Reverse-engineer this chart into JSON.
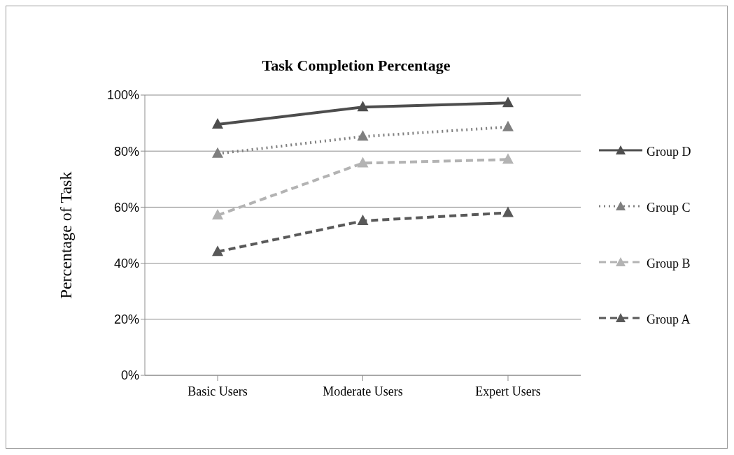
{
  "chart_data": {
    "type": "line",
    "title": "Task Completion Percentage",
    "ylabel": "Percentage of Task",
    "categories": [
      "Basic Users",
      "Moderate Users",
      "Expert Users"
    ],
    "series": [
      {
        "name": "Group A",
        "color": "#595959",
        "line_style": "dashed",
        "values": [
          44.1,
          55.1,
          58
        ]
      },
      {
        "name": "Group B",
        "color": "#b3b3b3",
        "line_style": "dashed",
        "values": [
          57.1,
          75.7,
          77
        ]
      },
      {
        "name": "Group C",
        "color": "#7f7f7f",
        "line_style": "dotted",
        "values": [
          79.1,
          85.2,
          88.6
        ]
      },
      {
        "name": "Group D",
        "color": "#4d4d4d",
        "line_style": "solid",
        "values": [
          89.5,
          95.7,
          97.2
        ]
      }
    ],
    "ylim": [
      0,
      100
    ],
    "yticks": [
      {
        "value": 0,
        "label": "0%"
      },
      {
        "value": 20,
        "label": "20%"
      },
      {
        "value": 40,
        "label": "40%"
      },
      {
        "value": 60,
        "label": "60%"
      },
      {
        "value": 80,
        "label": "80%"
      },
      {
        "value": 100,
        "label": "100%"
      }
    ],
    "grid": "y",
    "legend": "right",
    "marker": "triangle"
  }
}
